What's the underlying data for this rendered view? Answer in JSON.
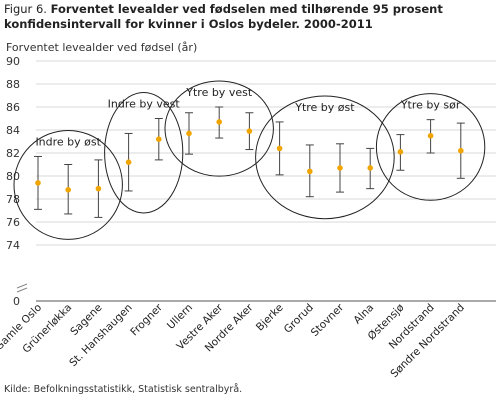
{
  "figure_label": "Figur 6.",
  "title": "Forventet levealder ved fødselen med tilhørende 95 prosent konfidensintervall for kvinner i Oslos bydeler. 2000-2011",
  "source": "Kilde: Befolkningsstatistikk, Statistisk sentralbyrå.",
  "colors": {
    "point": "#f0a500",
    "whisker": "#444444",
    "grid": "#d9d9d9",
    "axis": "#555555",
    "ellipse": "#222222"
  },
  "chart_data": {
    "type": "scatter",
    "ylabel": "Forventet levealder ved fødsel (år)",
    "ylim": [
      0,
      90
    ],
    "y_ticks": [
      0,
      74,
      76,
      78,
      80,
      82,
      84,
      86,
      88,
      90
    ],
    "axis_break": true,
    "grid": true,
    "categories": [
      "Gamle Oslo",
      "Grünerløkka",
      "Sagene",
      "St. Hanshaugen",
      "Frogner",
      "Ullern",
      "Vestre Aker",
      "Nordre Aker",
      "Bjerke",
      "Grorud",
      "Stovner",
      "Alna",
      "Østensjø",
      "Nordstrand",
      "Søndre Nordstrand"
    ],
    "values": [
      79.4,
      78.8,
      78.9,
      81.2,
      83.2,
      83.7,
      84.7,
      83.9,
      82.4,
      80.4,
      80.7,
      80.7,
      82.1,
      83.5,
      82.2
    ],
    "ci_low": [
      77.1,
      76.7,
      76.4,
      78.7,
      81.4,
      81.9,
      83.3,
      82.3,
      80.1,
      78.2,
      78.6,
      78.9,
      80.5,
      82.0,
      79.8
    ],
    "ci_high": [
      81.7,
      81.0,
      81.4,
      83.7,
      85.0,
      85.5,
      86.0,
      85.5,
      84.7,
      82.7,
      82.8,
      82.4,
      83.6,
      84.9,
      84.6
    ],
    "groups": [
      {
        "label": "Indre by øst",
        "from": 0,
        "to": 2
      },
      {
        "label": "Indre by vest",
        "from": 3,
        "to": 4
      },
      {
        "label": "Ytre by vest",
        "from": 5,
        "to": 7
      },
      {
        "label": "Ytre by øst",
        "from": 8,
        "to": 11
      },
      {
        "label": "Ytre by sør",
        "from": 12,
        "to": 14
      }
    ]
  }
}
